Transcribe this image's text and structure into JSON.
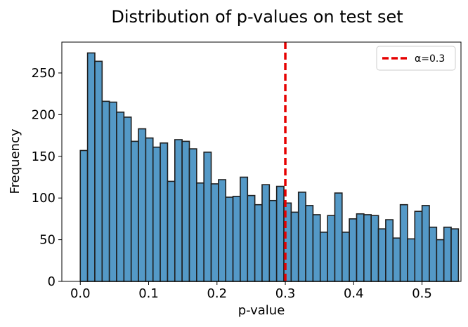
{
  "chart_data": {
    "type": "bar",
    "title": "Distribution of p-values on test set",
    "xlabel": "p-value",
    "ylabel": "Frequency",
    "xlim": [
      -0.027,
      0.557
    ],
    "ylim": [
      0,
      287
    ],
    "xticks": [
      0.0,
      0.1,
      0.2,
      0.3,
      0.4,
      0.5
    ],
    "xtick_labels": [
      "0.0",
      "0.1",
      "0.2",
      "0.3",
      "0.4",
      "0.5"
    ],
    "yticks": [
      0,
      50,
      100,
      150,
      200,
      250
    ],
    "ytick_labels": [
      "0",
      "50",
      "100",
      "150",
      "200",
      "250"
    ],
    "bin_start": 0.0,
    "bin_width": 0.01064,
    "values": [
      157,
      274,
      264,
      216,
      215,
      203,
      197,
      168,
      183,
      172,
      161,
      166,
      120,
      170,
      168,
      159,
      118,
      155,
      117,
      122,
      101,
      102,
      125,
      103,
      92,
      116,
      97,
      114,
      94,
      83,
      107,
      91,
      80,
      59,
      79,
      106,
      59,
      75,
      81,
      80,
      79,
      63,
      74,
      52,
      92,
      51,
      84,
      91,
      65,
      50,
      65,
      63
    ],
    "bar_color": "#5499c7",
    "edge_color": "#1f1f1f",
    "threshold": {
      "x": 0.3,
      "color": "#e60000",
      "style": "dashed",
      "label": "α=0.3"
    },
    "legend_position": "top-right",
    "grid": false
  }
}
